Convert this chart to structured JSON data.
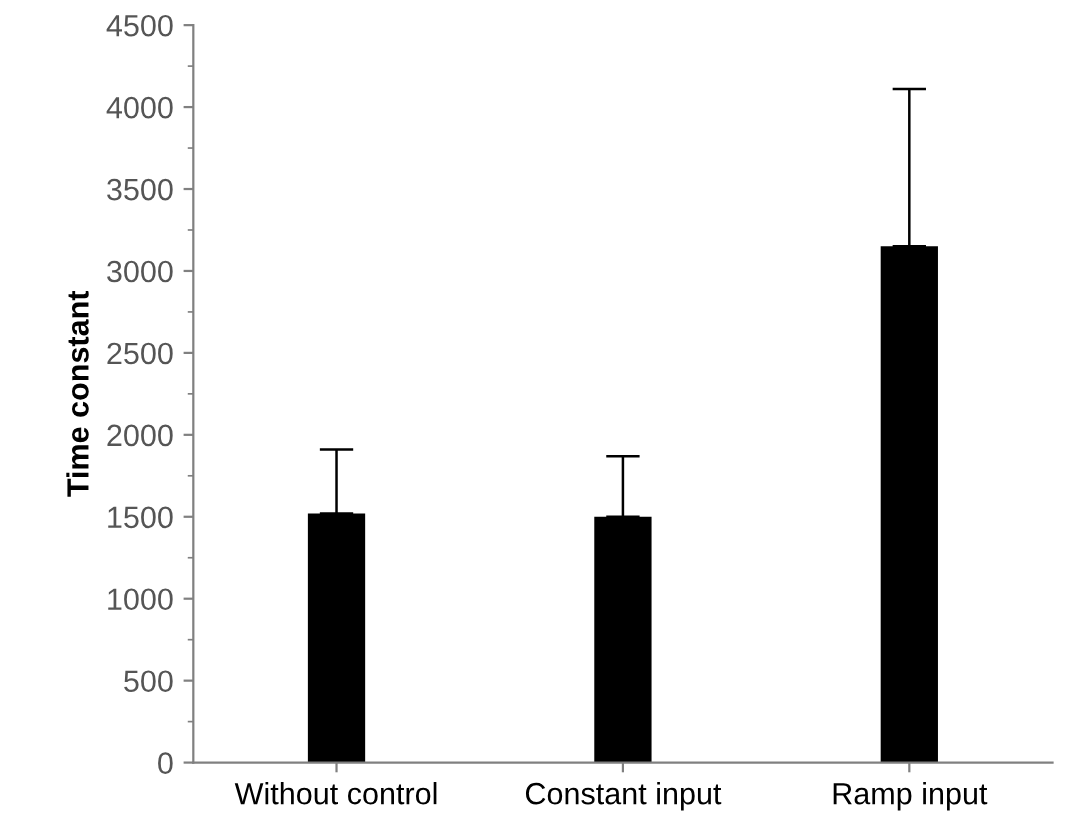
{
  "chart_data": {
    "type": "bar",
    "ylabel": "Time constant",
    "categories": [
      "Without control",
      "Constant input",
      "Ramp input"
    ],
    "values": [
      1520,
      1500,
      3150
    ],
    "color": "#000000",
    "errors": [
      [
        1520,
        1910
      ],
      [
        1500,
        1870
      ],
      [
        3150,
        4110
      ]
    ],
    "ylim": [
      0,
      4500
    ],
    "yticks": [
      0,
      500,
      1000,
      1500,
      2000,
      2500,
      3000,
      3500,
      4000,
      4500
    ],
    "grid": false,
    "legend": false
  }
}
